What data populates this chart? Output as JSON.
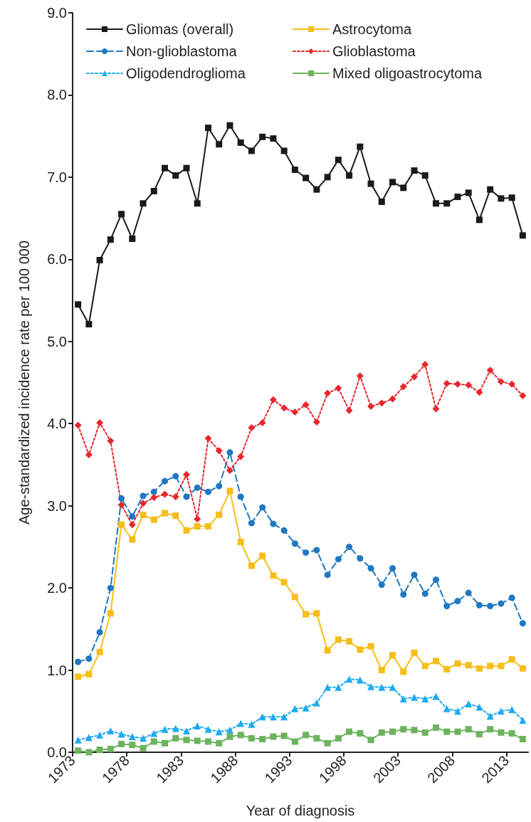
{
  "chart_data": {
    "type": "line",
    "xlabel": "Year of diagnosis",
    "ylabel": "Age-standardized incidence rate per 100 000",
    "x": [
      1973.5,
      1974.5,
      1975.5,
      1976.5,
      1977.5,
      1978.5,
      1979.5,
      1980.5,
      1981.5,
      1982.5,
      1983.5,
      1984.5,
      1985.5,
      1986.5,
      1987.5,
      1988.5,
      1989.5,
      1990.5,
      1991.5,
      1992.5,
      1993.5,
      1994.5,
      1995.5,
      1996.5,
      1997.5,
      1998.5,
      1999.5,
      2000.5,
      2001.5,
      2002.5,
      2003.5,
      2004.5,
      2005.5,
      2006.5,
      2007.5,
      2008.5,
      2009.5,
      2010.5,
      2011.5,
      2012.5,
      2013.5,
      2014.5
    ],
    "xlim": [
      1973,
      2015
    ],
    "xticks": [
      1973,
      1978,
      1983,
      1988,
      1993,
      1998,
      2003,
      2008,
      2013
    ],
    "ylim": [
      0,
      9
    ],
    "yticks": [
      {
        "value": 0,
        "label": "0.0"
      },
      {
        "value": 1,
        "label": "1.0"
      },
      {
        "value": 2,
        "label": "2.0"
      },
      {
        "value": 3,
        "label": "3.0"
      },
      {
        "value": 4,
        "label": "4.0"
      },
      {
        "value": 5,
        "label": "5.0"
      },
      {
        "value": 6,
        "label": "6.0"
      },
      {
        "value": 7,
        "label": "7.0"
      },
      {
        "value": 8,
        "label": "8.0"
      },
      {
        "value": 9,
        "label": "9.0"
      }
    ],
    "grid": false,
    "legend": "top",
    "series": [
      {
        "name": "Gliomas (overall)",
        "color": "#1a1a1a",
        "marker": "square",
        "line_style": "solid",
        "values": [
          5.45,
          5.21,
          5.99,
          6.24,
          6.55,
          6.25,
          6.68,
          6.83,
          7.11,
          7.02,
          7.11,
          6.68,
          7.6,
          7.4,
          7.63,
          7.42,
          7.32,
          7.49,
          7.47,
          7.32,
          7.09,
          6.99,
          6.85,
          7.0,
          7.21,
          7.02,
          7.37,
          6.92,
          6.7,
          6.94,
          6.87,
          7.08,
          7.02,
          6.68,
          6.68,
          6.76,
          6.81,
          6.48,
          6.85,
          6.74,
          6.75,
          6.29
        ]
      },
      {
        "name": "Non-glioblastoma",
        "color": "#1f78c1",
        "marker": "circle",
        "line_style": "dashed",
        "values": [
          1.1,
          1.14,
          1.46,
          2.0,
          3.09,
          2.87,
          3.12,
          3.17,
          3.3,
          3.36,
          3.11,
          3.22,
          3.17,
          3.24,
          3.65,
          3.11,
          2.79,
          2.98,
          2.78,
          2.7,
          2.54,
          2.43,
          2.46,
          2.16,
          2.35,
          2.5,
          2.36,
          2.24,
          2.04,
          2.24,
          1.92,
          2.16,
          1.93,
          2.1,
          1.78,
          1.84,
          1.94,
          1.79,
          1.78,
          1.81,
          1.88,
          1.57
        ]
      },
      {
        "name": "Oligodendroglioma",
        "color": "#1eaaf1",
        "marker": "triangle",
        "line_style": "dotted",
        "values": [
          0.15,
          0.18,
          0.21,
          0.26,
          0.22,
          0.19,
          0.17,
          0.23,
          0.28,
          0.29,
          0.26,
          0.32,
          0.28,
          0.25,
          0.27,
          0.35,
          0.34,
          0.43,
          0.43,
          0.43,
          0.53,
          0.54,
          0.6,
          0.79,
          0.79,
          0.89,
          0.88,
          0.8,
          0.79,
          0.79,
          0.65,
          0.67,
          0.65,
          0.68,
          0.53,
          0.5,
          0.59,
          0.55,
          0.44,
          0.5,
          0.52,
          0.39
        ]
      },
      {
        "name": "Astrocytoma",
        "color": "#f6be1a",
        "marker": "square",
        "line_style": "solid",
        "values": [
          0.92,
          0.95,
          1.22,
          1.69,
          2.77,
          2.59,
          2.89,
          2.83,
          2.91,
          2.88,
          2.7,
          2.75,
          2.75,
          2.89,
          3.18,
          2.56,
          2.27,
          2.39,
          2.15,
          2.07,
          1.89,
          1.68,
          1.69,
          1.24,
          1.37,
          1.35,
          1.25,
          1.29,
          1.0,
          1.18,
          0.98,
          1.21,
          1.05,
          1.11,
          1.01,
          1.08,
          1.06,
          1.02,
          1.05,
          1.05,
          1.13,
          1.02
        ]
      },
      {
        "name": "Glioblastoma",
        "color": "#e8262d",
        "marker": "diamond",
        "line_style": "dotted",
        "values": [
          3.98,
          3.62,
          4.01,
          3.79,
          3.01,
          2.77,
          3.03,
          3.1,
          3.14,
          3.11,
          3.38,
          2.84,
          3.82,
          3.67,
          3.43,
          3.6,
          3.95,
          4.01,
          4.29,
          4.19,
          4.14,
          4.23,
          4.02,
          4.37,
          4.43,
          4.16,
          4.58,
          4.21,
          4.25,
          4.3,
          4.45,
          4.57,
          4.72,
          4.18,
          4.49,
          4.48,
          4.47,
          4.38,
          4.65,
          4.51,
          4.48,
          4.34
        ]
      },
      {
        "name": "Mixed oligoastrocytoma",
        "color": "#6db35f",
        "marker": "square",
        "line_style": "solid",
        "values": [
          0.02,
          0.0,
          0.03,
          0.04,
          0.1,
          0.09,
          0.05,
          0.13,
          0.11,
          0.17,
          0.15,
          0.14,
          0.13,
          0.11,
          0.19,
          0.21,
          0.17,
          0.16,
          0.19,
          0.2,
          0.13,
          0.21,
          0.17,
          0.11,
          0.17,
          0.25,
          0.23,
          0.15,
          0.24,
          0.25,
          0.28,
          0.27,
          0.24,
          0.3,
          0.25,
          0.25,
          0.28,
          0.22,
          0.28,
          0.24,
          0.23,
          0.16
        ]
      }
    ]
  }
}
